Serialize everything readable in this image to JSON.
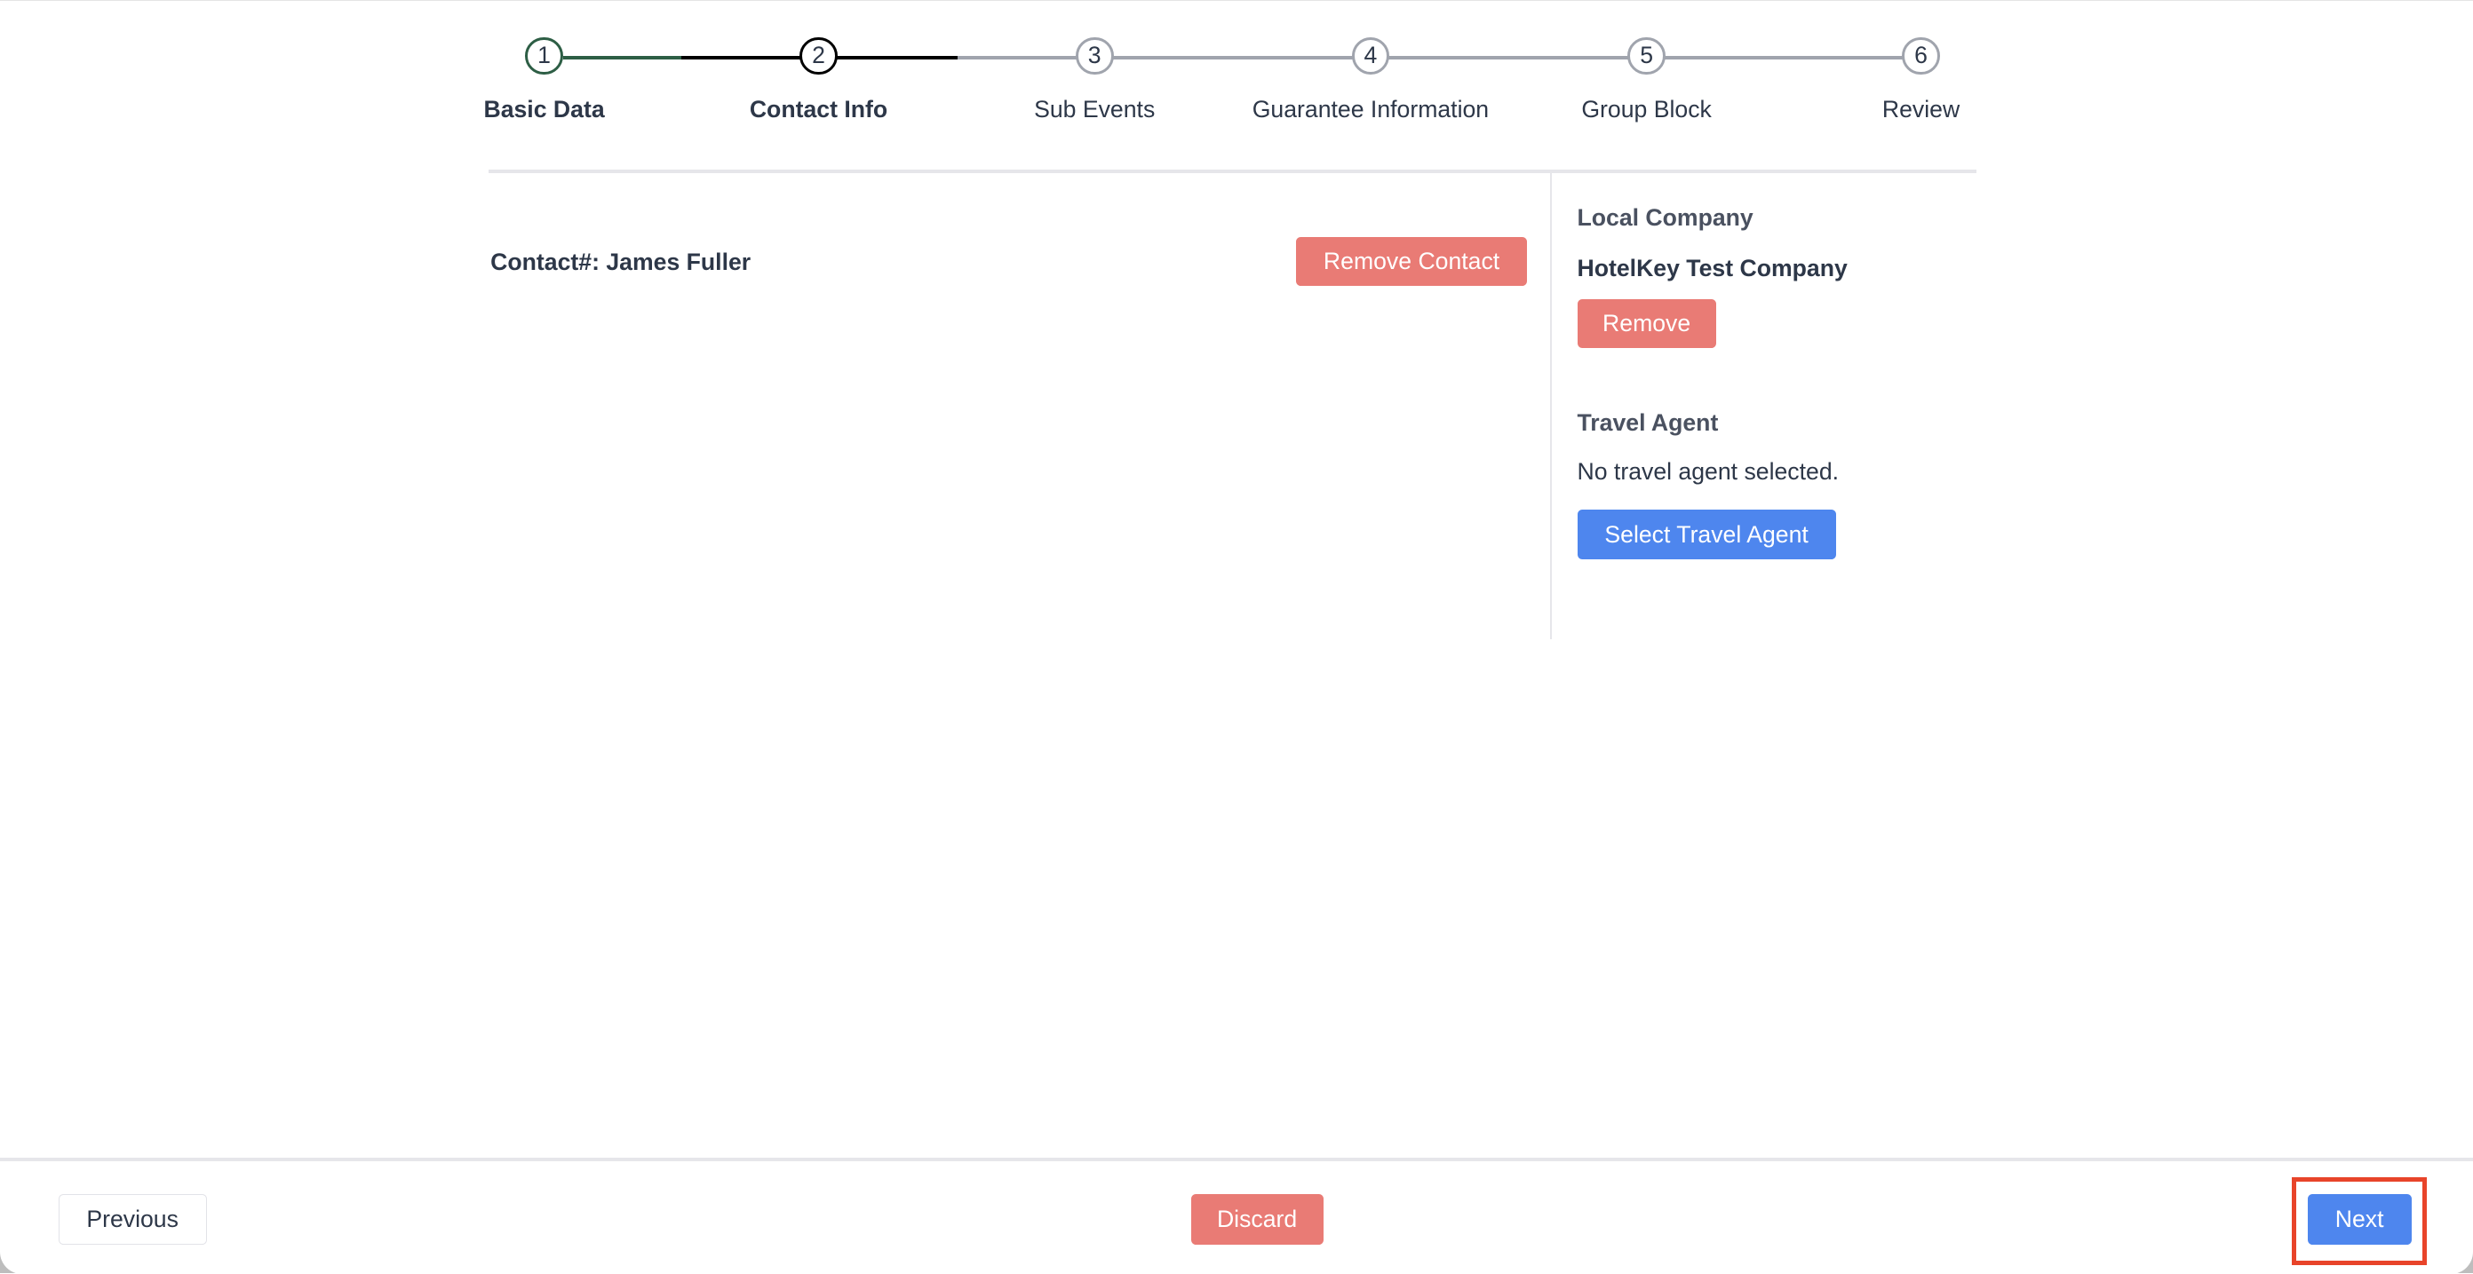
{
  "steps": [
    {
      "num": "1",
      "label": "Basic Data",
      "state": "completed"
    },
    {
      "num": "2",
      "label": "Contact Info",
      "state": "active"
    },
    {
      "num": "3",
      "label": "Sub Events",
      "state": "pending"
    },
    {
      "num": "4",
      "label": "Guarantee Information",
      "state": "pending"
    },
    {
      "num": "5",
      "label": "Group Block",
      "state": "pending"
    },
    {
      "num": "6",
      "label": "Review",
      "state": "pending"
    }
  ],
  "contact": {
    "title": "Contact#: James Fuller",
    "remove_label": "Remove Contact"
  },
  "local_company": {
    "heading": "Local Company",
    "name": "HotelKey Test Company",
    "remove_label": "Remove"
  },
  "travel_agent": {
    "heading": "Travel Agent",
    "empty_text": "No travel agent selected.",
    "select_label": "Select Travel Agent"
  },
  "footer": {
    "previous_label": "Previous",
    "discard_label": "Discard",
    "next_label": "Next"
  },
  "colors": {
    "completed": "#2d5e45",
    "active": "#000000",
    "pending": "#a0a4ad",
    "danger": "#e97b75",
    "primary": "#4e86ee",
    "highlight": "#e8442a"
  }
}
